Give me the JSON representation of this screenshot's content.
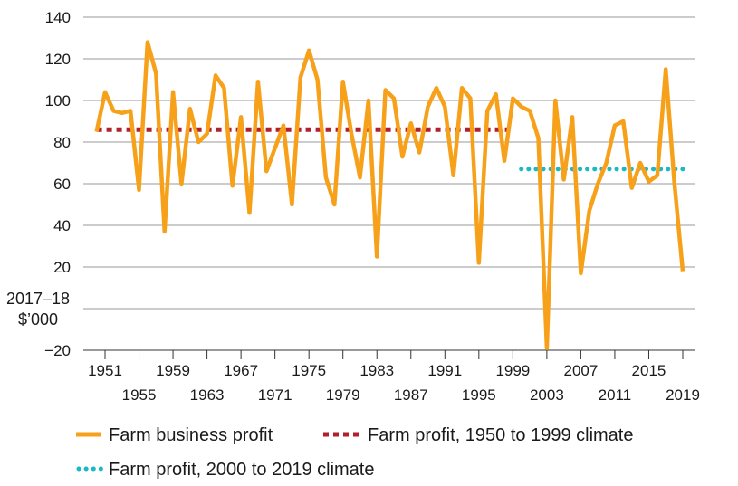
{
  "chart_data": {
    "type": "line",
    "title": "",
    "ylabel": "2017–18 $’000",
    "ylabel_lines": [
      "2017–18",
      "$’000"
    ],
    "ylim": [
      -20,
      140
    ],
    "yticks": [
      -20,
      0,
      20,
      40,
      60,
      80,
      100,
      120,
      140
    ],
    "ytick_labels": [
      "−20",
      "",
      "20",
      "40",
      "60",
      "80",
      "100",
      "120",
      "140"
    ],
    "xlim": [
      1950,
      2019
    ],
    "xtick_positions": [
      1951,
      1955,
      1959,
      1963,
      1967,
      1971,
      1975,
      1979,
      1983,
      1987,
      1991,
      1995,
      1999,
      2003,
      2007,
      2011,
      2015,
      2019
    ],
    "xtick_labels_top": [
      "1951",
      "1959",
      "1967",
      "1975",
      "1983",
      "1991",
      "1999",
      "2007",
      "2015"
    ],
    "xtick_labels_bottom": [
      "1955",
      "1963",
      "1971",
      "1979",
      "1987",
      "1995",
      "2003",
      "2011",
      "2019"
    ],
    "grid": true,
    "legend_position": "bottom",
    "series": [
      {
        "name": "Farm business profit",
        "color": "#f7a11a",
        "style": "solid",
        "x": [
          1950,
          1951,
          1952,
          1953,
          1954,
          1955,
          1956,
          1957,
          1958,
          1959,
          1960,
          1961,
          1962,
          1963,
          1964,
          1965,
          1966,
          1967,
          1968,
          1969,
          1970,
          1971,
          1972,
          1973,
          1974,
          1975,
          1976,
          1977,
          1978,
          1979,
          1980,
          1981,
          1982,
          1983,
          1984,
          1985,
          1986,
          1987,
          1988,
          1989,
          1990,
          1991,
          1992,
          1993,
          1994,
          1995,
          1996,
          1997,
          1998,
          1999,
          2000,
          2001,
          2002,
          2003,
          2004,
          2005,
          2006,
          2007,
          2008,
          2009,
          2010,
          2011,
          2012,
          2013,
          2014,
          2015,
          2016,
          2017,
          2018,
          2019
        ],
        "values": [
          85,
          104,
          95,
          94,
          95,
          57,
          128,
          113,
          37,
          104,
          60,
          96,
          80,
          84,
          112,
          106,
          59,
          92,
          46,
          109,
          66,
          77,
          88,
          50,
          111,
          124,
          110,
          63,
          50,
          109,
          84,
          63,
          100,
          25,
          105,
          101,
          73,
          89,
          75,
          97,
          106,
          97,
          64,
          106,
          101,
          22,
          95,
          103,
          71,
          101,
          97,
          95,
          82,
          -19,
          100,
          62,
          92,
          17,
          47,
          60,
          70,
          88,
          90,
          58,
          70,
          61,
          64,
          115,
          61,
          18
        ]
      },
      {
        "name": "Farm profit, 1950 to 1999 climate",
        "color": "#b0202e",
        "style": "dashed",
        "x": [
          1950,
          1999
        ],
        "values": [
          86,
          86
        ]
      },
      {
        "name": "Farm profit, 2000 to 2019 climate",
        "color": "#1cb8c6",
        "style": "dotted",
        "x": [
          2000,
          2019
        ],
        "values": [
          67,
          67
        ]
      }
    ]
  }
}
